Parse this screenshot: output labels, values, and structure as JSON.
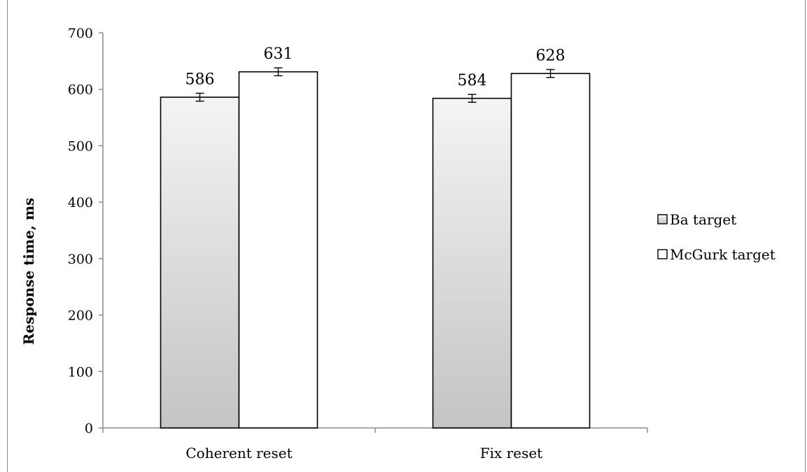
{
  "chart_data": {
    "type": "bar",
    "categories": [
      "Coherent reset",
      "Fix reset"
    ],
    "series": [
      {
        "name": "Ba target",
        "values": [
          586,
          584
        ],
        "errors": [
          7,
          7
        ],
        "fill": "gradient-gray"
      },
      {
        "name": "McGurk target",
        "values": [
          631,
          628
        ],
        "errors": [
          7,
          7
        ],
        "fill": "#ffffff"
      }
    ],
    "data_labels": [
      "586",
      "631",
      "584",
      "628"
    ],
    "title": "",
    "xlabel": "",
    "ylabel": "Response time, ms",
    "ylim": [
      0,
      700
    ],
    "yticks": [
      0,
      100,
      200,
      300,
      400,
      500,
      600,
      700
    ],
    "grid": false,
    "legend_position": "right",
    "colors": {
      "bar_stroke": "#000000",
      "gradient_top": "#f4f4f4",
      "gradient_bottom": "#c4c4c4",
      "axis": "#8c8c8c"
    }
  }
}
